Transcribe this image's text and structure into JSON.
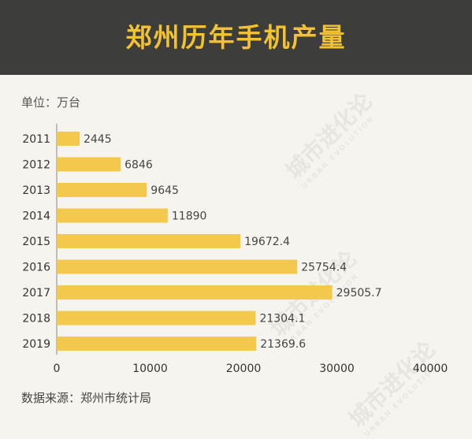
{
  "title": "郑州历年手机产量",
  "unit_label": "单位：万台",
  "source_label": "数据来源：郑州市统计局",
  "watermark": {
    "text": "城市进化论",
    "sub": "URBAN EVOLUTION"
  },
  "colors": {
    "header_bg": "#3d3d3b",
    "title": "#f2c230",
    "bar": "#f2c94c",
    "background": "#f6f4ee"
  },
  "chart_data": {
    "type": "bar",
    "orientation": "horizontal",
    "categories": [
      "2011",
      "2012",
      "2013",
      "2014",
      "2015",
      "2016",
      "2017",
      "2018",
      "2019"
    ],
    "values": [
      2445,
      6846,
      9645,
      11890,
      19672.4,
      25754.4,
      29505.7,
      21304.1,
      21369.6
    ],
    "value_labels": [
      "2445",
      "6846",
      "9645",
      "11890",
      "19672.4",
      "25754.4",
      "29505.7",
      "21304.1",
      "21369.6"
    ],
    "xlim": [
      0,
      40000
    ],
    "xticks": [
      "0",
      "10000",
      "20000",
      "30000",
      "40000"
    ],
    "xtick_values": [
      0,
      10000,
      20000,
      30000,
      40000
    ],
    "grid": false,
    "legend": "none"
  }
}
